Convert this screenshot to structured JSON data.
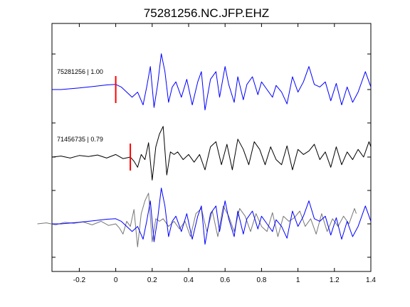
{
  "chart_data": {
    "type": "line",
    "title": "75281256.NC.JFP.EHZ",
    "xlabel": "",
    "ylabel": "",
    "xlim": [
      -0.35,
      1.4
    ],
    "x_ticks": [
      -0.2,
      0,
      0.2,
      0.4,
      0.6,
      0.8,
      1,
      1.2,
      1.4
    ],
    "x_tick_labels": [
      "-0.2",
      "0",
      "0.2",
      "0.4",
      "0.6",
      "0.8",
      "1",
      "1.2",
      "1.4"
    ],
    "grid": false,
    "traces": [
      {
        "label": "75281256 | 1.00",
        "color": "#0000ff",
        "pick_time": 0.0,
        "x": [
          -0.35,
          -0.3,
          -0.2,
          -0.1,
          -0.05,
          0,
          0.03,
          0.06,
          0.09,
          0.12,
          0.15,
          0.17,
          0.19,
          0.21,
          0.23,
          0.25,
          0.27,
          0.29,
          0.31,
          0.33,
          0.36,
          0.39,
          0.42,
          0.45,
          0.47,
          0.49,
          0.52,
          0.55,
          0.57,
          0.6,
          0.62,
          0.65,
          0.67,
          0.7,
          0.72,
          0.75,
          0.78,
          0.8,
          0.83,
          0.86,
          0.88,
          0.91,
          0.94,
          0.97,
          1.0,
          1.03,
          1.06,
          1.09,
          1.12,
          1.15,
          1.18,
          1.21,
          1.24,
          1.27,
          1.3,
          1.33,
          1.37,
          1.4
        ],
        "y": [
          0,
          0,
          0.03,
          0.07,
          0.09,
          0.1,
          0.05,
          -0.05,
          -0.15,
          -0.05,
          -0.3,
          0.05,
          0.45,
          -0.35,
          0.1,
          0.7,
          0.35,
          -0.25,
          0.05,
          0.15,
          -0.15,
          0.2,
          -0.3,
          0.15,
          0.35,
          -0.4,
          0.2,
          0.35,
          -0.15,
          0.45,
          0.1,
          -0.25,
          0.25,
          -0.2,
          0.1,
          0.25,
          -0.1,
          0.15,
          0.0,
          -0.15,
          0.08,
          -0.05,
          -0.28,
          0.25,
          -0.05,
          0.15,
          0.45,
          0.1,
          0.05,
          0.15,
          -0.22,
          0.12,
          -0.3,
          0.05,
          -0.25,
          -0.05,
          0.35,
          0.05
        ]
      },
      {
        "label": "71456735 | 0.79",
        "color": "#000000",
        "pick_time": 0.08,
        "x": [
          -0.35,
          -0.3,
          -0.25,
          -0.2,
          -0.15,
          -0.1,
          -0.05,
          0,
          0.04,
          0.08,
          0.1,
          0.12,
          0.14,
          0.16,
          0.18,
          0.2,
          0.22,
          0.24,
          0.26,
          0.28,
          0.3,
          0.32,
          0.34,
          0.37,
          0.4,
          0.43,
          0.46,
          0.49,
          0.52,
          0.55,
          0.58,
          0.61,
          0.64,
          0.67,
          0.7,
          0.73,
          0.76,
          0.79,
          0.82,
          0.85,
          0.88,
          0.91,
          0.94,
          0.97,
          1.0,
          1.03,
          1.06,
          1.09,
          1.12,
          1.15,
          1.18,
          1.21,
          1.24,
          1.27,
          1.3,
          1.33,
          1.36,
          1.39,
          1.4
        ],
        "y": [
          0,
          0.02,
          -0.02,
          0.03,
          0.01,
          0.04,
          -0.02,
          0.05,
          -0.03,
          0.0,
          -0.08,
          -0.2,
          0.05,
          -0.05,
          0.28,
          -0.45,
          0.2,
          0.45,
          0.6,
          -0.35,
          0.1,
          0.05,
          0.1,
          -0.05,
          0.05,
          -0.1,
          0.05,
          -0.25,
          0.2,
          0.3,
          -0.15,
          0.25,
          -0.25,
          0.35,
          0.15,
          -0.15,
          0.3,
          0.15,
          -0.15,
          0.2,
          -0.05,
          -0.15,
          0.22,
          -0.25,
          0.15,
          0.05,
          0.12,
          0.25,
          -0.05,
          0.1,
          -0.2,
          0.2,
          -0.15,
          0.1,
          -0.05,
          0.15,
          0.0,
          0.3,
          0.2
        ]
      }
    ]
  }
}
